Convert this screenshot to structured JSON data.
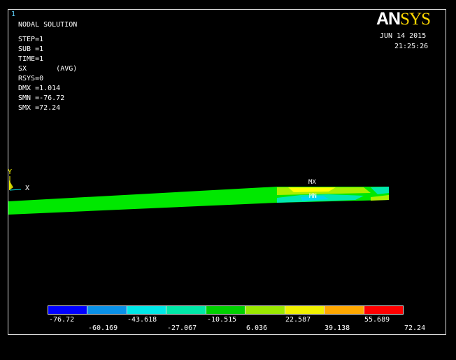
{
  "window": {
    "number": "1"
  },
  "info": {
    "lines": [
      "NODAL SOLUTION",
      "STEP=1",
      "SUB =1",
      "TIME=1",
      "SX       (AVG)",
      "RSYS=0",
      "DMX =1.014",
      "SMN =-76.72",
      "SMX =72.24"
    ]
  },
  "logo": {
    "part1": "AN",
    "part2": "SYS"
  },
  "datetime": {
    "date": "JUN 14 2015",
    "time": "21:25:26"
  },
  "axes": {
    "y": "Y",
    "x": "X"
  },
  "markers": {
    "max": "MX",
    "min": "MN"
  },
  "legend": {
    "colors": [
      "#0000ff",
      "#0a91e8",
      "#00e8e8",
      "#00e8a8",
      "#00d000",
      "#9ae800",
      "#f0f000",
      "#ffa800",
      "#ff0000"
    ],
    "top_labels": [
      "-76.72",
      "-43.618",
      "-10.515",
      "22.587",
      "55.689"
    ],
    "bottom_labels": [
      "-60.169",
      "-27.067",
      "6.036",
      "39.138",
      "72.24"
    ]
  },
  "colors": {
    "beam_main": "#00e800",
    "hot": "#ffff00",
    "mid": "#a8f000",
    "cool": "#00e8b0",
    "cold": "#00d8f0"
  }
}
